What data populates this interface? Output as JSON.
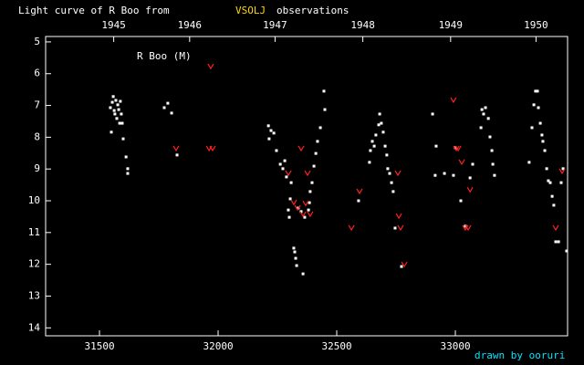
{
  "chart_data": {
    "type": "scatter",
    "title": "Light curve of R Boo from",
    "title_source": "VSOLJ",
    "title_suffix": "observations",
    "annotation": "R Boo (M)",
    "credit": "drawn by ooruri",
    "xlim": [
      31273,
      33473
    ],
    "xticks": [
      31500,
      32000,
      32500,
      33000
    ],
    "x2ticks": [
      {
        "value": 31560,
        "label": "1945"
      },
      {
        "value": 31880,
        "label": "1946"
      },
      {
        "value": 32240,
        "label": "1947"
      },
      {
        "value": 32610,
        "label": "1948"
      },
      {
        "value": 32980,
        "label": "1949"
      },
      {
        "value": 33340,
        "label": "1950"
      }
    ],
    "ylim": [
      4.83,
      14.25
    ],
    "y_inverted": true,
    "yticks": [
      5,
      6,
      7,
      8,
      9,
      10,
      11,
      12,
      13,
      14
    ],
    "series": [
      {
        "color": "#ffffff",
        "marker": "dot",
        "x": [
          31546,
          31554,
          31558,
          31562,
          31565,
          31569,
          31573,
          31577,
          31581,
          31585,
          31588,
          31592,
          31596,
          31600,
          31612,
          31619,
          31619,
          31550,
          31773,
          31788,
          31804,
          31827,
          32212,
          32215,
          32223,
          32235,
          32246,
          32262,
          32273,
          32281,
          32288,
          32296,
          32300,
          32304,
          32308,
          32319,
          32323,
          32327,
          32331,
          32338,
          32350,
          32358,
          32365,
          32381,
          32385,
          32388,
          32396,
          32404,
          32412,
          32419,
          32431,
          32446,
          32450,
          32592,
          32638,
          32642,
          32650,
          32658,
          32665,
          32677,
          32681,
          32688,
          32696,
          32704,
          32711,
          32715,
          32723,
          32731,
          32738,
          32746,
          32773,
          32904,
          32919,
          32915,
          32954,
          32992,
          33000,
          33023,
          33042,
          33062,
          33073,
          33108,
          33112,
          33119,
          33127,
          33139,
          33146,
          33154,
          33158,
          33165,
          33311,
          33323,
          33331,
          33338,
          33346,
          33350,
          33358,
          33365,
          33369,
          33377,
          33385,
          33392,
          33400,
          33408,
          33415,
          33423,
          33435,
          33446,
          33454,
          33469
        ],
        "values": [
          7.07,
          6.9,
          6.72,
          7.16,
          7.27,
          6.84,
          7.41,
          6.98,
          7.13,
          7.56,
          6.87,
          7.27,
          7.56,
          8.05,
          8.62,
          8.99,
          9.14,
          7.84,
          7.07,
          6.93,
          7.24,
          8.56,
          7.64,
          8.05,
          7.79,
          7.87,
          8.42,
          8.85,
          8.99,
          8.74,
          9.25,
          10.29,
          10.52,
          9.94,
          9.43,
          11.49,
          11.61,
          11.81,
          12.04,
          10.23,
          10.34,
          12.3,
          10.52,
          10.29,
          10.06,
          9.71,
          9.43,
          8.91,
          8.51,
          8.13,
          7.7,
          6.55,
          7.13,
          10.0,
          8.79,
          8.42,
          8.13,
          8.28,
          7.93,
          7.61,
          7.27,
          7.56,
          7.84,
          8.28,
          8.56,
          8.99,
          9.14,
          9.43,
          9.71,
          10.86,
          12.07,
          7.27,
          8.28,
          9.2,
          9.14,
          9.2,
          8.33,
          10.0,
          10.8,
          9.28,
          8.85,
          7.7,
          7.13,
          7.27,
          7.07,
          7.41,
          7.99,
          8.42,
          8.85,
          9.2,
          8.79,
          7.7,
          6.98,
          6.55,
          6.55,
          7.07,
          7.56,
          7.93,
          8.13,
          8.42,
          8.99,
          9.37,
          9.43,
          9.86,
          10.14,
          11.29,
          11.29,
          9.43,
          8.99,
          11.58
        ]
      },
      {
        "color": "#ff2020",
        "marker": "v",
        "x": [
          31823,
          31969,
          31962,
          31977,
          32296,
          32319,
          32335,
          32358,
          32350,
          32369,
          32377,
          32388,
          32596,
          32562,
          32758,
          32762,
          32769,
          32785,
          32992,
          33004,
          33012,
          33027,
          33042,
          33054,
          33062,
          33423,
          33450
        ],
        "values": [
          8.36,
          5.78,
          8.36,
          8.36,
          9.14,
          10.06,
          10.23,
          10.43,
          8.36,
          10.09,
          9.14,
          10.43,
          9.71,
          10.86,
          9.14,
          10.49,
          10.86,
          12.01,
          6.84,
          8.36,
          8.36,
          8.79,
          10.86,
          10.86,
          9.66,
          10.86,
          9.08
        ]
      }
    ]
  }
}
